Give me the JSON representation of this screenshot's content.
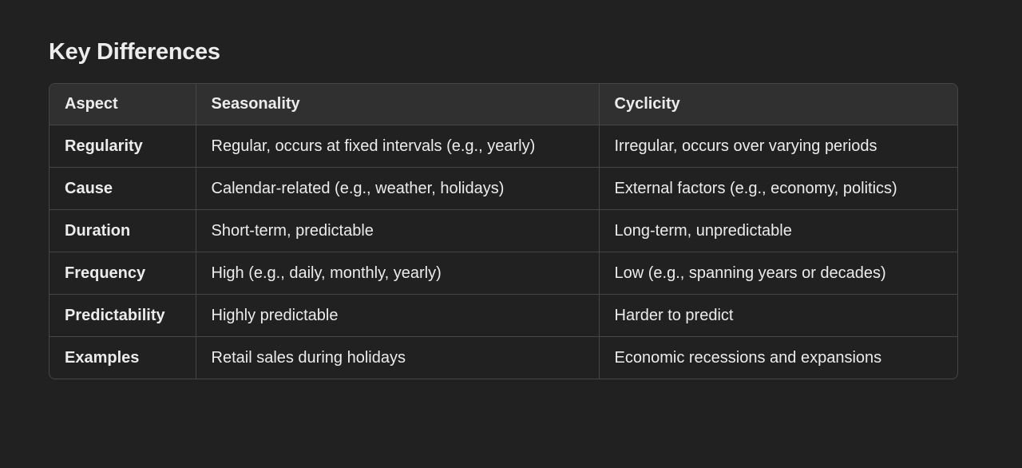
{
  "section": {
    "heading": "Key Differences"
  },
  "table": {
    "headers": [
      "Aspect",
      "Seasonality",
      "Cyclicity"
    ],
    "rows": [
      [
        "Regularity",
        "Regular, occurs at fixed intervals (e.g., yearly)",
        "Irregular, occurs over varying periods"
      ],
      [
        "Cause",
        "Calendar-related (e.g., weather, holidays)",
        "External factors (e.g., economy, politics)"
      ],
      [
        "Duration",
        "Short-term, predictable",
        "Long-term, unpredictable"
      ],
      [
        "Frequency",
        "High (e.g., daily, monthly, yearly)",
        "Low (e.g., spanning years or decades)"
      ],
      [
        "Predictability",
        "Highly predictable",
        "Harder to predict"
      ],
      [
        "Examples",
        "Retail sales during holidays",
        "Economic recessions and expansions"
      ]
    ]
  },
  "colors": {
    "background": "#212121",
    "header_background": "#303030",
    "border": "#464646",
    "text": "#ececec"
  }
}
